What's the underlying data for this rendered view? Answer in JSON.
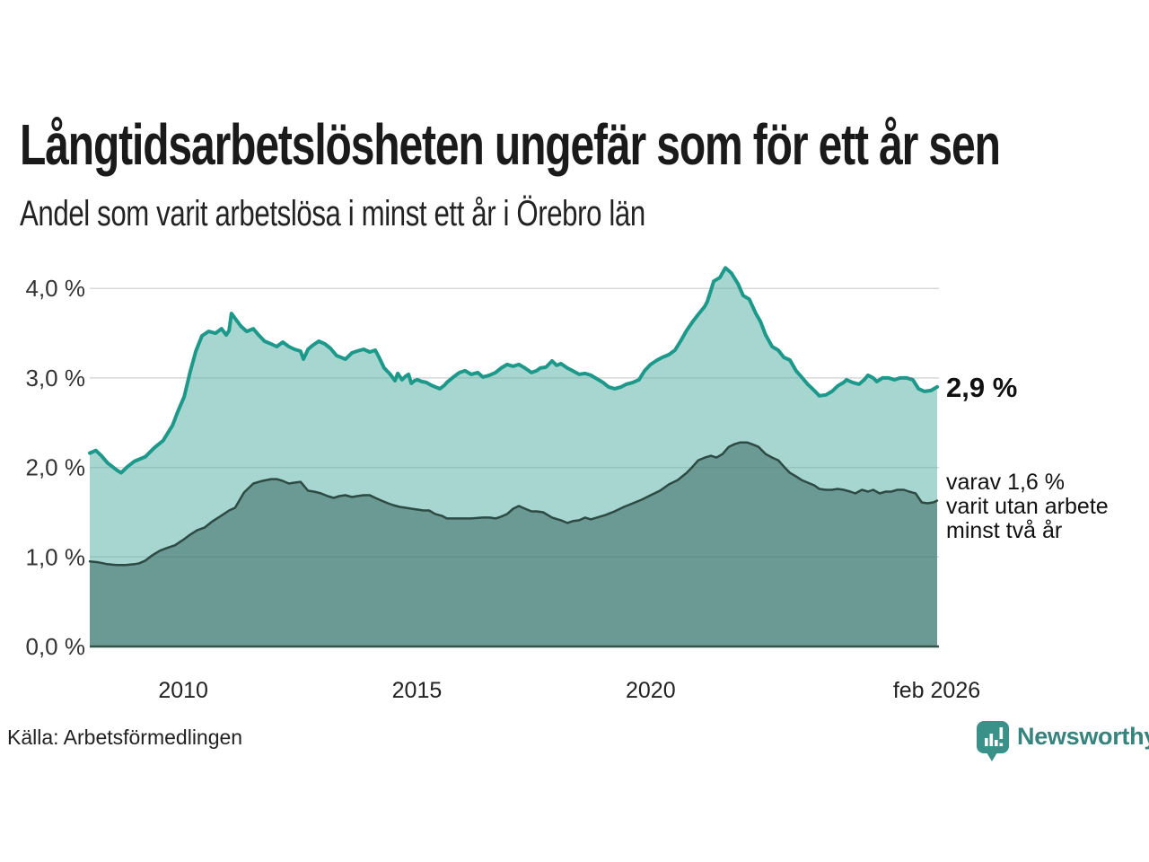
{
  "annotations": {
    "latest_value": "2,9 %",
    "secondary_note": "varav 1,6 %\nvarit utan arbete\nminst två år"
  },
  "source": {
    "label": "Källa: Arbetsförmedlingen"
  },
  "branding": {
    "name": "Newsworthy",
    "logo_icon": "bar-chart-speech-bubble",
    "icon_color": "#3a9189",
    "text_color": "#37847f"
  },
  "chart_data": {
    "type": "area",
    "title": "Långtidsarbetslösheten ungefär som för ett år sen",
    "subtitle": "Andel som varit arbetslösa i minst ett år i Örebro län",
    "xlabel": "",
    "ylabel": "",
    "unit": "%",
    "grid": true,
    "legend": "none",
    "x_range": [
      2008.0,
      2026.13
    ],
    "ylim": [
      0,
      4.35
    ],
    "yticks": [
      {
        "value": 0.0,
        "label": "0,0 %"
      },
      {
        "value": 1.0,
        "label": "1,0 %"
      },
      {
        "value": 2.0,
        "label": "2,0 %"
      },
      {
        "value": 3.0,
        "label": "3,0 %"
      },
      {
        "value": 4.0,
        "label": "4,0 %"
      }
    ],
    "xticks": [
      {
        "value": 2010,
        "label": "2010"
      },
      {
        "value": 2015,
        "label": "2015"
      },
      {
        "value": 2020,
        "label": "2020"
      },
      {
        "value": 2026.12,
        "label": "feb 2026"
      }
    ],
    "grid_color": "#d8d8d8",
    "axis_line_color": "#33524c",
    "tick_label_color": "#333333",
    "series": [
      {
        "name": "Andel som varit arbetslösa i minst ett år",
        "line_color": "#1d998b",
        "fill_color": "rgba(95,179,167,0.55)",
        "line_width": 4,
        "points": [
          [
            2008.0,
            2.16
          ],
          [
            2008.13,
            2.19
          ],
          [
            2008.25,
            2.13
          ],
          [
            2008.38,
            2.05
          ],
          [
            2008.58,
            1.97
          ],
          [
            2008.67,
            1.94
          ],
          [
            2008.81,
            2.01
          ],
          [
            2008.96,
            2.07
          ],
          [
            2009.19,
            2.12
          ],
          [
            2009.38,
            2.22
          ],
          [
            2009.57,
            2.3
          ],
          [
            2009.77,
            2.47
          ],
          [
            2009.88,
            2.62
          ],
          [
            2010.02,
            2.79
          ],
          [
            2010.15,
            3.07
          ],
          [
            2010.27,
            3.3
          ],
          [
            2010.4,
            3.47
          ],
          [
            2010.54,
            3.52
          ],
          [
            2010.69,
            3.5
          ],
          [
            2010.82,
            3.55
          ],
          [
            2010.92,
            3.48
          ],
          [
            2010.98,
            3.53
          ],
          [
            2011.03,
            3.72
          ],
          [
            2011.13,
            3.65
          ],
          [
            2011.23,
            3.58
          ],
          [
            2011.36,
            3.52
          ],
          [
            2011.5,
            3.55
          ],
          [
            2011.61,
            3.48
          ],
          [
            2011.74,
            3.41
          ],
          [
            2011.88,
            3.38
          ],
          [
            2012.0,
            3.35
          ],
          [
            2012.13,
            3.4
          ],
          [
            2012.26,
            3.35
          ],
          [
            2012.38,
            3.32
          ],
          [
            2012.51,
            3.3
          ],
          [
            2012.57,
            3.21
          ],
          [
            2012.67,
            3.32
          ],
          [
            2012.76,
            3.36
          ],
          [
            2012.9,
            3.41
          ],
          [
            2013.03,
            3.38
          ],
          [
            2013.15,
            3.33
          ],
          [
            2013.28,
            3.25
          ],
          [
            2013.47,
            3.21
          ],
          [
            2013.61,
            3.28
          ],
          [
            2013.72,
            3.3
          ],
          [
            2013.86,
            3.32
          ],
          [
            2013.99,
            3.29
          ],
          [
            2014.11,
            3.31
          ],
          [
            2014.18,
            3.24
          ],
          [
            2014.3,
            3.11
          ],
          [
            2014.43,
            3.04
          ],
          [
            2014.53,
            2.97
          ],
          [
            2014.59,
            3.05
          ],
          [
            2014.68,
            2.98
          ],
          [
            2014.76,
            3.02
          ],
          [
            2014.82,
            3.04
          ],
          [
            2014.88,
            2.94
          ],
          [
            2014.95,
            2.97
          ],
          [
            2015.01,
            2.98
          ],
          [
            2015.1,
            2.96
          ],
          [
            2015.2,
            2.95
          ],
          [
            2015.3,
            2.92
          ],
          [
            2015.39,
            2.9
          ],
          [
            2015.49,
            2.88
          ],
          [
            2015.59,
            2.92
          ],
          [
            2015.64,
            2.95
          ],
          [
            2015.78,
            3.01
          ],
          [
            2015.91,
            3.06
          ],
          [
            2016.03,
            3.08
          ],
          [
            2016.16,
            3.04
          ],
          [
            2016.3,
            3.06
          ],
          [
            2016.41,
            3.01
          ],
          [
            2016.55,
            3.03
          ],
          [
            2016.68,
            3.06
          ],
          [
            2016.8,
            3.11
          ],
          [
            2016.93,
            3.15
          ],
          [
            2017.06,
            3.13
          ],
          [
            2017.18,
            3.15
          ],
          [
            2017.31,
            3.11
          ],
          [
            2017.45,
            3.06
          ],
          [
            2017.56,
            3.08
          ],
          [
            2017.64,
            3.11
          ],
          [
            2017.76,
            3.12
          ],
          [
            2017.89,
            3.19
          ],
          [
            2017.99,
            3.14
          ],
          [
            2018.08,
            3.16
          ],
          [
            2018.22,
            3.11
          ],
          [
            2018.33,
            3.08
          ],
          [
            2018.47,
            3.04
          ],
          [
            2018.6,
            3.05
          ],
          [
            2018.72,
            3.03
          ],
          [
            2018.85,
            2.99
          ],
          [
            2018.98,
            2.95
          ],
          [
            2019.1,
            2.9
          ],
          [
            2019.23,
            2.88
          ],
          [
            2019.37,
            2.9
          ],
          [
            2019.48,
            2.93
          ],
          [
            2019.62,
            2.95
          ],
          [
            2019.75,
            2.98
          ],
          [
            2019.87,
            3.08
          ],
          [
            2020.0,
            3.15
          ],
          [
            2020.14,
            3.2
          ],
          [
            2020.25,
            3.23
          ],
          [
            2020.39,
            3.26
          ],
          [
            2020.52,
            3.31
          ],
          [
            2020.64,
            3.41
          ],
          [
            2020.77,
            3.53
          ],
          [
            2020.9,
            3.63
          ],
          [
            2021.02,
            3.71
          ],
          [
            2021.16,
            3.8
          ],
          [
            2021.21,
            3.85
          ],
          [
            2021.29,
            3.98
          ],
          [
            2021.35,
            4.08
          ],
          [
            2021.48,
            4.12
          ],
          [
            2021.6,
            4.23
          ],
          [
            2021.73,
            4.17
          ],
          [
            2021.87,
            4.05
          ],
          [
            2021.98,
            3.92
          ],
          [
            2022.11,
            3.88
          ],
          [
            2022.25,
            3.72
          ],
          [
            2022.35,
            3.63
          ],
          [
            2022.46,
            3.48
          ],
          [
            2022.6,
            3.35
          ],
          [
            2022.73,
            3.31
          ],
          [
            2022.85,
            3.23
          ],
          [
            2022.98,
            3.2
          ],
          [
            2023.11,
            3.08
          ],
          [
            2023.23,
            3.01
          ],
          [
            2023.36,
            2.93
          ],
          [
            2023.5,
            2.86
          ],
          [
            2023.61,
            2.8
          ],
          [
            2023.75,
            2.81
          ],
          [
            2023.88,
            2.85
          ],
          [
            2024.0,
            2.91
          ],
          [
            2024.13,
            2.95
          ],
          [
            2024.19,
            2.98
          ],
          [
            2024.32,
            2.95
          ],
          [
            2024.46,
            2.93
          ],
          [
            2024.57,
            2.98
          ],
          [
            2024.65,
            3.03
          ],
          [
            2024.76,
            3.0
          ],
          [
            2024.84,
            2.96
          ],
          [
            2024.96,
            3.0
          ],
          [
            2025.09,
            3.0
          ],
          [
            2025.22,
            2.98
          ],
          [
            2025.34,
            3.0
          ],
          [
            2025.48,
            3.0
          ],
          [
            2025.61,
            2.98
          ],
          [
            2025.73,
            2.88
          ],
          [
            2025.86,
            2.85
          ],
          [
            2026.0,
            2.86
          ],
          [
            2026.13,
            2.9
          ]
        ],
        "end_label": "2,9 %"
      },
      {
        "name": "varav utan arbete minst två år",
        "line_color": "#2e4a45",
        "fill_color": "rgba(56,106,99,0.55)",
        "line_width": 2.5,
        "points": [
          [
            2008.0,
            0.95
          ],
          [
            2008.19,
            0.94
          ],
          [
            2008.38,
            0.92
          ],
          [
            2008.58,
            0.91
          ],
          [
            2008.77,
            0.91
          ],
          [
            2008.96,
            0.92
          ],
          [
            2009.06,
            0.93
          ],
          [
            2009.19,
            0.96
          ],
          [
            2009.34,
            1.02
          ],
          [
            2009.5,
            1.07
          ],
          [
            2009.65,
            1.1
          ],
          [
            2009.82,
            1.13
          ],
          [
            2010.02,
            1.2
          ],
          [
            2010.15,
            1.25
          ],
          [
            2010.3,
            1.3
          ],
          [
            2010.46,
            1.33
          ],
          [
            2010.63,
            1.4
          ],
          [
            2010.78,
            1.45
          ],
          [
            2010.98,
            1.52
          ],
          [
            2011.11,
            1.55
          ],
          [
            2011.3,
            1.72
          ],
          [
            2011.5,
            1.82
          ],
          [
            2011.69,
            1.85
          ],
          [
            2011.88,
            1.87
          ],
          [
            2012.0,
            1.87
          ],
          [
            2012.13,
            1.85
          ],
          [
            2012.26,
            1.82
          ],
          [
            2012.38,
            1.83
          ],
          [
            2012.51,
            1.84
          ],
          [
            2012.67,
            1.74
          ],
          [
            2012.8,
            1.73
          ],
          [
            2012.95,
            1.71
          ],
          [
            2013.09,
            1.68
          ],
          [
            2013.22,
            1.66
          ],
          [
            2013.34,
            1.68
          ],
          [
            2013.47,
            1.69
          ],
          [
            2013.61,
            1.67
          ],
          [
            2013.72,
            1.68
          ],
          [
            2013.86,
            1.69
          ],
          [
            2013.99,
            1.69
          ],
          [
            2014.11,
            1.66
          ],
          [
            2014.24,
            1.63
          ],
          [
            2014.38,
            1.6
          ],
          [
            2014.49,
            1.58
          ],
          [
            2014.63,
            1.56
          ],
          [
            2014.76,
            1.55
          ],
          [
            2014.88,
            1.54
          ],
          [
            2015.01,
            1.53
          ],
          [
            2015.14,
            1.52
          ],
          [
            2015.26,
            1.52
          ],
          [
            2015.39,
            1.48
          ],
          [
            2015.53,
            1.46
          ],
          [
            2015.64,
            1.43
          ],
          [
            2015.91,
            1.43
          ],
          [
            2016.16,
            1.43
          ],
          [
            2016.41,
            1.44
          ],
          [
            2016.55,
            1.44
          ],
          [
            2016.68,
            1.43
          ],
          [
            2016.8,
            1.45
          ],
          [
            2016.93,
            1.48
          ],
          [
            2017.06,
            1.54
          ],
          [
            2017.18,
            1.57
          ],
          [
            2017.31,
            1.54
          ],
          [
            2017.45,
            1.51
          ],
          [
            2017.56,
            1.51
          ],
          [
            2017.7,
            1.5
          ],
          [
            2017.89,
            1.44
          ],
          [
            2018.08,
            1.41
          ],
          [
            2018.22,
            1.38
          ],
          [
            2018.33,
            1.4
          ],
          [
            2018.47,
            1.41
          ],
          [
            2018.6,
            1.44
          ],
          [
            2018.72,
            1.42
          ],
          [
            2018.85,
            1.44
          ],
          [
            2019.04,
            1.47
          ],
          [
            2019.23,
            1.51
          ],
          [
            2019.43,
            1.56
          ],
          [
            2019.62,
            1.6
          ],
          [
            2019.81,
            1.64
          ],
          [
            2020.0,
            1.69
          ],
          [
            2020.2,
            1.74
          ],
          [
            2020.39,
            1.81
          ],
          [
            2020.58,
            1.86
          ],
          [
            2020.77,
            1.94
          ],
          [
            2020.9,
            2.01
          ],
          [
            2021.02,
            2.08
          ],
          [
            2021.16,
            2.11
          ],
          [
            2021.29,
            2.13
          ],
          [
            2021.41,
            2.11
          ],
          [
            2021.54,
            2.15
          ],
          [
            2021.67,
            2.23
          ],
          [
            2021.79,
            2.26
          ],
          [
            2021.92,
            2.28
          ],
          [
            2022.06,
            2.28
          ],
          [
            2022.17,
            2.26
          ],
          [
            2022.31,
            2.23
          ],
          [
            2022.46,
            2.15
          ],
          [
            2022.6,
            2.11
          ],
          [
            2022.73,
            2.08
          ],
          [
            2022.85,
            2.01
          ],
          [
            2022.98,
            1.94
          ],
          [
            2023.11,
            1.9
          ],
          [
            2023.23,
            1.86
          ],
          [
            2023.36,
            1.83
          ],
          [
            2023.5,
            1.8
          ],
          [
            2023.61,
            1.76
          ],
          [
            2023.75,
            1.75
          ],
          [
            2023.88,
            1.75
          ],
          [
            2024.0,
            1.76
          ],
          [
            2024.13,
            1.75
          ],
          [
            2024.27,
            1.73
          ],
          [
            2024.38,
            1.71
          ],
          [
            2024.52,
            1.75
          ],
          [
            2024.65,
            1.73
          ],
          [
            2024.76,
            1.75
          ],
          [
            2024.9,
            1.71
          ],
          [
            2025.03,
            1.73
          ],
          [
            2025.15,
            1.73
          ],
          [
            2025.28,
            1.75
          ],
          [
            2025.42,
            1.75
          ],
          [
            2025.53,
            1.73
          ],
          [
            2025.67,
            1.71
          ],
          [
            2025.8,
            1.61
          ],
          [
            2025.92,
            1.6
          ],
          [
            2026.05,
            1.61
          ],
          [
            2026.13,
            1.63
          ]
        ],
        "end_label": "varav 1,6 % varit utan arbete minst två år"
      }
    ]
  }
}
